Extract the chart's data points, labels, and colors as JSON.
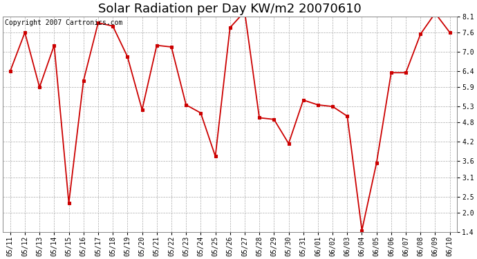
{
  "title": "Solar Radiation per Day KW/m2 20070610",
  "copyright_text": "Copyright 2007 Cartronics.com",
  "x_labels": [
    "05/11",
    "05/12",
    "05/13",
    "05/14",
    "05/15",
    "05/16",
    "05/17",
    "05/18",
    "05/19",
    "05/20",
    "05/21",
    "05/22",
    "05/23",
    "05/24",
    "05/25",
    "05/26",
    "05/27",
    "05/28",
    "05/29",
    "05/30",
    "05/31",
    "06/01",
    "06/02",
    "06/03",
    "06/04",
    "06/05",
    "06/06",
    "06/07",
    "06/08",
    "06/09",
    "06/10"
  ],
  "y_values": [
    6.4,
    7.6,
    5.9,
    7.2,
    2.3,
    6.1,
    7.9,
    7.8,
    6.85,
    5.2,
    7.2,
    7.15,
    5.35,
    5.1,
    3.75,
    7.75,
    8.25,
    4.95,
    4.9,
    4.15,
    5.5,
    5.35,
    5.3,
    5.0,
    1.45,
    3.55,
    6.35,
    6.35,
    7.55,
    8.2,
    7.6
  ],
  "line_color": "#cc0000",
  "marker": "o",
  "marker_size": 3,
  "marker_color": "#cc0000",
  "background_color": "#ffffff",
  "plot_background": "#ffffff",
  "grid_color": "#aaaaaa",
  "grid_style": "--",
  "ylim": [
    1.4,
    8.1
  ],
  "yticks": [
    1.4,
    2.0,
    2.5,
    3.1,
    3.6,
    4.2,
    4.8,
    5.3,
    5.9,
    6.4,
    7.0,
    7.6,
    8.1
  ],
  "title_fontsize": 13,
  "tick_fontsize": 7,
  "copyright_fontsize": 7
}
